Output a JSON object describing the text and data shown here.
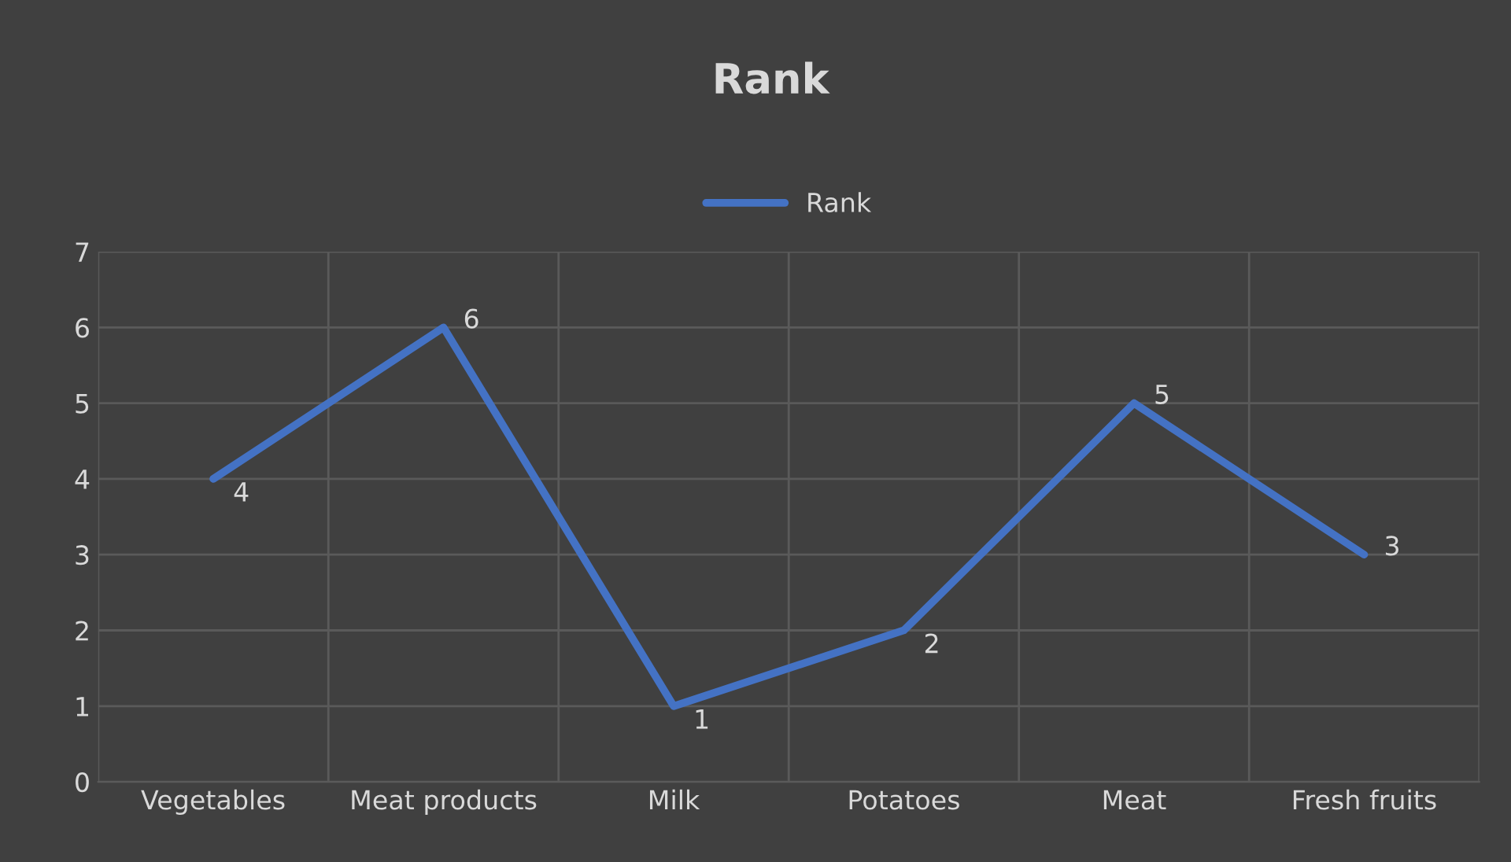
{
  "chart_data": {
    "type": "line",
    "title": "Rank",
    "categories": [
      "Vegetables",
      "Meat products",
      "Milk",
      "Potatoes",
      "Meat",
      "Fresh fruits"
    ],
    "series": [
      {
        "name": "Rank",
        "color": "#4472c4",
        "values": [
          4,
          6,
          1,
          2,
          5,
          3
        ]
      }
    ],
    "ylim": [
      0,
      7
    ],
    "yticks": [
      0,
      1,
      2,
      3,
      4,
      5,
      6,
      7
    ],
    "grid": true,
    "legend": "top",
    "data_labels": true,
    "marker": "none",
    "line_style": "solid"
  }
}
